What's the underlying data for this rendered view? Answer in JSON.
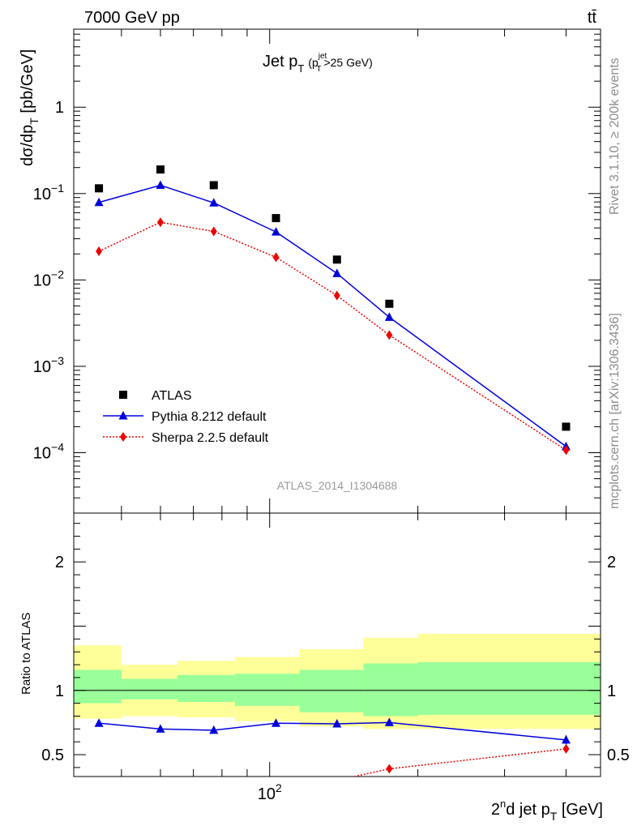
{
  "header": {
    "left": "7000 GeV pp",
    "right": "tt̄"
  },
  "side_labels": {
    "rivet": "Rivet 3.1.10, ≥ 200k events",
    "mcplots": "mcplots.cern.ch [arXiv:1306.3436]"
  },
  "chart_data": [
    {
      "type": "scatter",
      "title_main": "Jet p",
      "title_sub": "T",
      "title_paren_open": "(p",
      "title_paren_sup": "jet",
      "title_paren_sub": "T",
      "title_paren_close": ">25 GeV)",
      "ylabel": "dσ/dp",
      "ylabel_sub": "T",
      "ylabel_unit": " [pb/GeV]",
      "yscale": "log",
      "xscale": "log",
      "xlim": [
        40,
        470
      ],
      "ylim": [
        2e-05,
        8
      ],
      "watermark": "ATLAS_2014_I1304688",
      "x_ticks": [
        {
          "value": 100,
          "base": "10",
          "exp": "2"
        }
      ],
      "y_ticks": [
        {
          "value": 1,
          "label": "1",
          "base": "",
          "exp": ""
        },
        {
          "value": 0.1,
          "label": "",
          "base": "10",
          "exp": "−1"
        },
        {
          "value": 0.01,
          "label": "",
          "base": "10",
          "exp": "−2"
        },
        {
          "value": 0.001,
          "label": "",
          "base": "10",
          "exp": "−3"
        },
        {
          "value": 0.0001,
          "label": "",
          "base": "10",
          "exp": "−4"
        }
      ],
      "series": [
        {
          "name": "ATLAS",
          "marker": "square",
          "color": "#000000",
          "x": [
            45,
            60,
            77,
            103,
            137,
            175,
            400
          ],
          "y": [
            0.115,
            0.19,
            0.125,
            0.052,
            0.0172,
            0.0053,
            0.0002
          ]
        },
        {
          "name": "Pythia 8.212 default",
          "marker": "triangle",
          "line": "solid",
          "color": "#0000dd",
          "x": [
            45,
            60,
            77,
            103,
            137,
            175,
            400
          ],
          "y": [
            0.079,
            0.125,
            0.078,
            0.036,
            0.0119,
            0.0037,
            0.000118
          ]
        },
        {
          "name": "Sherpa 2.2.5 default",
          "marker": "diamond",
          "line": "dotted",
          "color": "#ee0000",
          "x": [
            45,
            60,
            77,
            103,
            137,
            175,
            400
          ],
          "y": [
            0.0215,
            0.0465,
            0.0365,
            0.0183,
            0.0066,
            0.0023,
            0.000107
          ]
        }
      ]
    },
    {
      "type": "scatter",
      "ylabel": "Ratio to ATLAS",
      "xlabel_pre": "2",
      "xlabel_sup": "n",
      "xlabel_mid": "d jet p",
      "xlabel_sub": "T",
      "xlabel_unit": " [GeV]",
      "xscale": "log",
      "xlim": [
        40,
        470
      ],
      "ylim": [
        0.33,
        2.38
      ],
      "y_ticks": [
        {
          "value": 0.5,
          "label": "0.5"
        },
        {
          "value": 1,
          "label": "1"
        },
        {
          "value": 2,
          "label": "2"
        }
      ],
      "bands": {
        "bin_edges": [
          40,
          50,
          65,
          85,
          115,
          155,
          200,
          470
        ],
        "yellow_low": [
          0.78,
          0.8,
          0.79,
          0.76,
          0.72,
          0.7,
          0.7
        ],
        "yellow_high": [
          1.35,
          1.2,
          1.23,
          1.26,
          1.32,
          1.41,
          1.44
        ],
        "green_low": [
          0.9,
          0.93,
          0.91,
          0.88,
          0.83,
          0.8,
          0.81
        ],
        "green_high": [
          1.16,
          1.09,
          1.12,
          1.13,
          1.16,
          1.21,
          1.22
        ]
      },
      "series": [
        {
          "name": "Pythia 8.212 default",
          "color": "#0000dd",
          "marker": "triangle",
          "x": [
            45,
            60,
            77,
            103,
            137,
            175,
            400
          ],
          "y": [
            0.745,
            0.7,
            0.69,
            0.745,
            0.74,
            0.75,
            0.615
          ],
          "err": [
            0,
            0,
            0,
            0,
            0,
            0.025,
            0.035
          ]
        },
        {
          "name": "Sherpa 2.2.5 default",
          "color": "#ee0000",
          "marker": "diamond",
          "x": [
            130,
            175,
            400
          ],
          "y": [
            0.28,
            0.39,
            0.545
          ]
        }
      ]
    }
  ]
}
